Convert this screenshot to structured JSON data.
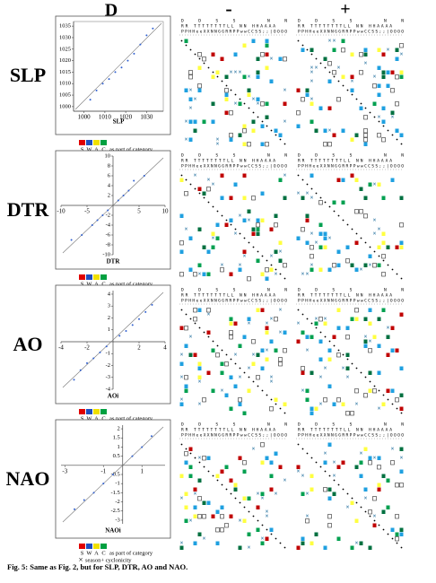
{
  "header": {
    "title": "D",
    "minus": "-",
    "plus": "+"
  },
  "row_labels": [
    "SLP",
    "DTR",
    "AO",
    "NAO"
  ],
  "matrix_header": [
    "DDSS          NN",
    "RR  TTTTTTTTLL       NN HHAAAA",
    "PPHHeeXXNNGGRRPPwwCCSS;;|OOOO"
  ],
  "legend": {
    "letters": [
      "S",
      "W",
      "A",
      "C"
    ],
    "colors": [
      "#e00000",
      "#1f4fc0",
      "#f0e000",
      "#00a040"
    ],
    "text": "as part of category",
    "cross_text": "season+ cyclonicity"
  },
  "mark_colors": {
    "red": "#c00000",
    "green": "#00a050",
    "blue": "#1fa0e0",
    "dark_green": "#007040",
    "yellow": "#ffff40",
    "cross": "#1a6a9a"
  },
  "chart_data": [
    {
      "type": "scatter",
      "xlabel": "SLP",
      "axes_at_origin": false,
      "color": "#3060d0",
      "xlim": [
        995,
        1038
      ],
      "ylim": [
        998,
        1037
      ],
      "xticks": [
        1000,
        1010,
        1020,
        1030
      ],
      "yticks": [
        1000,
        1005,
        1010,
        1015,
        1020,
        1025,
        1030,
        1035
      ],
      "x": [
        1003,
        1006,
        1009,
        1012,
        1015,
        1018,
        1021,
        1024,
        1027,
        1030,
        1033
      ],
      "y": [
        1003,
        1007,
        1010,
        1012,
        1015,
        1017,
        1020,
        1023,
        1027,
        1031,
        1034
      ]
    },
    {
      "type": "scatter",
      "xlabel": "DTR",
      "axes_at_origin": true,
      "color": "#3060d0",
      "xlim": [
        -10,
        10
      ],
      "ylim": [
        -10,
        10
      ],
      "xticks": [
        -10,
        -5,
        5,
        10
      ],
      "yticks": [
        10,
        8,
        6,
        4,
        2,
        -2,
        -4,
        -6,
        -8,
        -10
      ],
      "x": [
        -8,
        -6,
        -4,
        -3,
        -2,
        -1,
        1,
        2,
        3,
        4,
        6
      ],
      "y": [
        -7,
        -6,
        -4,
        -3,
        -2,
        -1,
        1,
        2,
        3,
        5,
        6
      ]
    },
    {
      "type": "scatter",
      "xlabel": "AOi",
      "axes_at_origin": true,
      "color": "#3060d0",
      "xlim": [
        -4,
        4
      ],
      "ylim": [
        -4,
        4.3
      ],
      "xticks": [
        -4,
        -2,
        2,
        4
      ],
      "yticks": [
        4,
        3,
        2,
        1,
        -1,
        -2,
        -3,
        -4
      ],
      "x": [
        -3,
        -2.5,
        -2,
        -1.5,
        -1,
        -0.5,
        0.5,
        1,
        1.5,
        2,
        2.5,
        3
      ],
      "y": [
        -3.2,
        -2.4,
        -1.8,
        -1.4,
        -0.9,
        -0.4,
        0.5,
        0.9,
        1.4,
        1.9,
        2.5,
        3.1
      ]
    },
    {
      "type": "scatter",
      "xlabel": "NAOi",
      "axes_at_origin": true,
      "color": "#3060d0",
      "xlim": [
        -3.2,
        2.2
      ],
      "ylim": [
        -3.2,
        2.2
      ],
      "xticks": [
        -3,
        -1,
        1
      ],
      "yticks": [
        2,
        1.5,
        1,
        0.5,
        -0.5,
        -1,
        -1.5,
        -2,
        -2.5,
        -3
      ],
      "x": [
        -2.5,
        -2,
        -1.5,
        -1,
        -0.5,
        0.5,
        1,
        1.5
      ],
      "y": [
        -2.4,
        -1.9,
        -1.5,
        -1,
        -0.5,
        0.5,
        1,
        1.6
      ]
    }
  ],
  "caption": "Fig. 5: Same as Fig. 2, but for SLP, DTR, AO and NAO."
}
